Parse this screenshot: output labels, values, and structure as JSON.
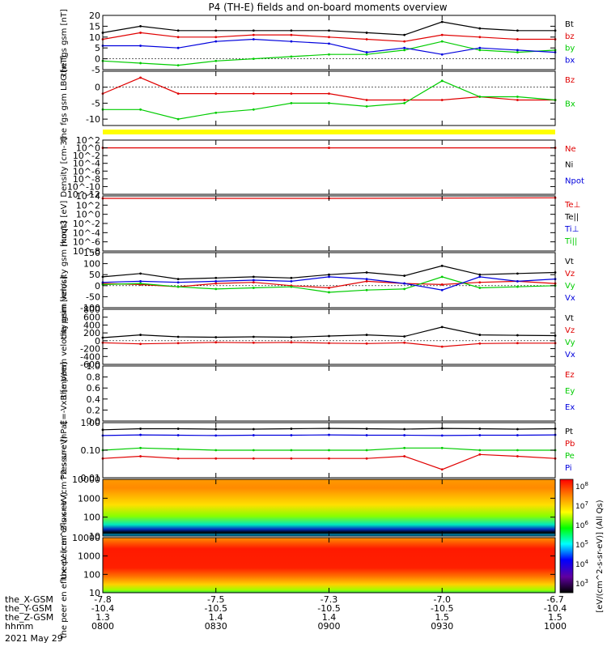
{
  "title": "P4 (TH-E) fields and on-board moments overview",
  "date_label": "2021 May 29",
  "time_axis": {
    "range_hhmm": [
      "0800",
      "1000"
    ],
    "tick_times": [
      "0800",
      "0830",
      "0900",
      "0930",
      "1000"
    ],
    "rows": [
      {
        "label": "the_X-GSM",
        "values": [
          "-7.8",
          "-7.5",
          "-7.3",
          "-7.0",
          "-6.7"
        ]
      },
      {
        "label": "the_Y-GSM",
        "values": [
          "-10.4",
          "-10.5",
          "-10.5",
          "-10.5",
          "-10.4"
        ]
      },
      {
        "label": "the_Z-GSM",
        "values": [
          "1.3",
          "1.4",
          "1.4",
          "1.5",
          "1.5"
        ]
      },
      {
        "label": "hhmm",
        "values": [
          "0800",
          "0830",
          "0900",
          "0930",
          "1000"
        ]
      }
    ]
  },
  "colorbar": {
    "label": "[eV/(cm^2-s-sr-eV)] (All Qs)",
    "ticks": [
      "10^8",
      "10^7",
      "10^6",
      "10^5",
      "10^4",
      "10^3"
    ],
    "colors": [
      "#ff0000",
      "#ff8000",
      "#ffff00",
      "#00ff00",
      "#00ffff",
      "#0000ff",
      "#6000a0",
      "#000000"
    ]
  },
  "chart_data": [
    {
      "type": "line",
      "ylabel": "the fgs gsm [nT]",
      "ylim": [
        -5,
        20
      ],
      "yticks": [
        "20",
        "15",
        "10",
        "5",
        "0",
        "-5"
      ],
      "legend": [
        "Bt",
        "bz",
        "by",
        "bx"
      ],
      "colors": [
        "#000000",
        "#e00000",
        "#00cc00",
        "#0000dd"
      ],
      "series": [
        {
          "name": "Bt",
          "x": [
            "0800",
            "0810",
            "0820",
            "0830",
            "0840",
            "0850",
            "0900",
            "0910",
            "0920",
            "0930",
            "0940",
            "0950",
            "1000"
          ],
          "values": [
            12,
            15,
            13,
            13,
            13,
            13,
            13,
            12,
            11,
            17,
            14,
            13,
            13
          ]
        },
        {
          "name": "bz",
          "x": [
            "0800",
            "0810",
            "0820",
            "0830",
            "0840",
            "0850",
            "0900",
            "0910",
            "0920",
            "0930",
            "0940",
            "0950",
            "1000"
          ],
          "values": [
            9,
            12,
            10,
            10,
            11,
            11,
            10,
            9,
            8,
            11,
            10,
            9,
            9
          ]
        },
        {
          "name": "by",
          "x": [
            "0800",
            "0810",
            "0820",
            "0830",
            "0840",
            "0850",
            "0900",
            "0910",
            "0920",
            "0930",
            "0940",
            "0950",
            "1000"
          ],
          "values": [
            -1,
            -2,
            -3,
            -1,
            0,
            1,
            2,
            2,
            4,
            8,
            4,
            3,
            4
          ]
        },
        {
          "name": "bx",
          "x": [
            "0800",
            "0810",
            "0820",
            "0830",
            "0840",
            "0850",
            "0900",
            "0910",
            "0920",
            "0930",
            "0940",
            "0950",
            "1000"
          ],
          "values": [
            6,
            6,
            5,
            8,
            9,
            8,
            7,
            3,
            5,
            2,
            5,
            4,
            3
          ]
        }
      ]
    },
    {
      "type": "line",
      "ylabel": "the fgs gsm LBG [nT]",
      "ylim": [
        -12,
        5
      ],
      "yticks": [
        "0",
        "-5",
        "-10"
      ],
      "legend": [
        "Bz",
        "Bx"
      ],
      "colors": [
        "#e00000",
        "#00cc00"
      ],
      "series": [
        {
          "name": "Bz",
          "x": [
            "0800",
            "0810",
            "0820",
            "0830",
            "0840",
            "0850",
            "0900",
            "0910",
            "0920",
            "0930",
            "0940",
            "0950",
            "1000"
          ],
          "values": [
            -2,
            3,
            -2,
            -2,
            -2,
            -2,
            -2,
            -4,
            -4,
            -4,
            -3,
            -4,
            -4
          ]
        },
        {
          "name": "Bx",
          "x": [
            "0800",
            "0810",
            "0820",
            "0830",
            "0840",
            "0850",
            "0900",
            "0910",
            "0920",
            "0930",
            "0940",
            "0950",
            "1000"
          ],
          "values": [
            -7,
            -7,
            -10,
            -8,
            -7,
            -5,
            -5,
            -6,
            -5,
            2,
            -3,
            -3,
            -4
          ]
        }
      ]
    },
    {
      "type": "line",
      "ylabel": "Density [cm-3]",
      "ylog": true,
      "yticks": [
        "10^2",
        "10^0",
        "10^-2",
        "10^-4",
        "10^-6",
        "10^-8",
        "10^-10",
        "10^-12"
      ],
      "legend": [
        "Ne",
        "Ni",
        "Npot"
      ],
      "colors": [
        "#e00000",
        "#000000",
        "#0000dd"
      ],
      "series": [
        {
          "name": "Ne",
          "x": [
            "0800",
            "0900",
            "1000"
          ],
          "values": [
            1,
            1,
            1
          ]
        }
      ]
    },
    {
      "type": "line",
      "ylabel": "moqt3 [eV]",
      "ylog": true,
      "yticks": [
        "10^4",
        "10^2",
        "10^0",
        "10^-2",
        "10^-4",
        "10^-6",
        "10^-8"
      ],
      "legend": [
        "Te⊥",
        "Te||",
        "Ti⊥",
        "Ti||"
      ],
      "colors": [
        "#e00000",
        "#000000",
        "#0000dd",
        "#00cc00"
      ],
      "series": [
        {
          "name": "Te⊥",
          "x": [
            "0800",
            "0900",
            "1000"
          ],
          "values": [
            3000,
            3000,
            4000
          ]
        }
      ]
    },
    {
      "type": "line",
      "ylabel": "the peim velocity gsm [km/s]",
      "ylim": [
        -100,
        150
      ],
      "yticks": [
        "150",
        "100",
        "50",
        "0",
        "-50",
        "-100"
      ],
      "legend": [
        "Vt",
        "Vz",
        "Vy",
        "Vx"
      ],
      "colors": [
        "#000000",
        "#e00000",
        "#00cc00",
        "#0000dd"
      ],
      "series": [
        {
          "name": "Vt",
          "x": [
            "0800",
            "0810",
            "0820",
            "0830",
            "0840",
            "0850",
            "0900",
            "0910",
            "0920",
            "0930",
            "0940",
            "0950",
            "1000"
          ],
          "values": [
            40,
            55,
            30,
            35,
            40,
            35,
            50,
            60,
            45,
            90,
            50,
            55,
            60
          ]
        },
        {
          "name": "Vz",
          "x": [
            "0800",
            "0810",
            "0820",
            "0830",
            "0840",
            "0850",
            "0900",
            "0910",
            "0920",
            "0930",
            "0940",
            "0950",
            "1000"
          ],
          "values": [
            10,
            5,
            -5,
            10,
            15,
            0,
            -10,
            20,
            10,
            5,
            15,
            20,
            10
          ]
        },
        {
          "name": "Vy",
          "x": [
            "0800",
            "0810",
            "0820",
            "0830",
            "0840",
            "0850",
            "0900",
            "0910",
            "0920",
            "0930",
            "0940",
            "0950",
            "1000"
          ],
          "values": [
            5,
            10,
            -5,
            -15,
            -10,
            -5,
            -30,
            -20,
            -15,
            40,
            -10,
            -5,
            0
          ]
        },
        {
          "name": "Vx",
          "x": [
            "0800",
            "0810",
            "0820",
            "0830",
            "0840",
            "0850",
            "0900",
            "0910",
            "0920",
            "0930",
            "0940",
            "0950",
            "1000"
          ],
          "values": [
            15,
            20,
            15,
            20,
            25,
            20,
            40,
            30,
            10,
            -20,
            40,
            20,
            30
          ]
        }
      ]
    },
    {
      "type": "line",
      "ylabel": "the peem velocity gsm [km/s]",
      "ylim": [
        -600,
        800
      ],
      "yticks": [
        "800",
        "600",
        "400",
        "200",
        "0",
        "-200",
        "-400",
        "-600"
      ],
      "legend": [
        "Vt",
        "Vz",
        "Vy",
        "Vx"
      ],
      "colors": [
        "#000000",
        "#e00000",
        "#00cc00",
        "#0000dd"
      ],
      "series": [
        {
          "name": "Vt",
          "x": [
            "0800",
            "0810",
            "0820",
            "0830",
            "0840",
            "0850",
            "0900",
            "0910",
            "0920",
            "0930",
            "0940",
            "0950",
            "1000"
          ],
          "values": [
            80,
            150,
            100,
            90,
            100,
            90,
            120,
            150,
            110,
            350,
            150,
            140,
            130
          ]
        },
        {
          "name": "Vz",
          "x": [
            "0800",
            "0810",
            "0820",
            "0830",
            "0840",
            "0850",
            "0900",
            "0910",
            "0920",
            "0930",
            "0940",
            "0950",
            "1000"
          ],
          "values": [
            -50,
            -80,
            -60,
            -40,
            -50,
            -40,
            -60,
            -70,
            -50,
            -150,
            -70,
            -60,
            -60
          ]
        }
      ]
    },
    {
      "type": "line",
      "ylabel": "E=-VxB [mV/m]",
      "ylim": [
        0,
        1
      ],
      "yticks": [
        "1.0",
        "0.8",
        "0.6",
        "0.4",
        "0.2",
        "0.0"
      ],
      "legend": [
        "Ez",
        "Ey",
        "Ex"
      ],
      "colors": [
        "#e00000",
        "#00cc00",
        "#0000dd"
      ],
      "series": []
    },
    {
      "type": "line",
      "ylabel": "Pressure [nPa]",
      "ylog": true,
      "yticks": [
        "1.00",
        "0.10",
        "0.01"
      ],
      "legend": [
        "Pt",
        "Pb",
        "Pe",
        "Pi"
      ],
      "colors": [
        "#000000",
        "#e00000",
        "#00cc00",
        "#0000dd"
      ],
      "series": [
        {
          "name": "Pt",
          "x": [
            "0800",
            "0810",
            "0820",
            "0830",
            "0840",
            "0850",
            "0900",
            "0910",
            "0920",
            "0930",
            "0940",
            "0950",
            "1000"
          ],
          "values": [
            0.55,
            0.6,
            0.6,
            0.58,
            0.58,
            0.6,
            0.62,
            0.6,
            0.58,
            0.62,
            0.6,
            0.58,
            0.6
          ]
        },
        {
          "name": "Pi",
          "x": [
            "0800",
            "0810",
            "0820",
            "0830",
            "0840",
            "0850",
            "0900",
            "0910",
            "0920",
            "0930",
            "0940",
            "0950",
            "1000"
          ],
          "values": [
            0.34,
            0.36,
            0.35,
            0.34,
            0.35,
            0.35,
            0.36,
            0.35,
            0.35,
            0.34,
            0.35,
            0.35,
            0.36
          ]
        },
        {
          "name": "Pe",
          "x": [
            "0800",
            "0810",
            "0820",
            "0830",
            "0840",
            "0850",
            "0900",
            "0910",
            "0920",
            "0930",
            "0940",
            "0950",
            "1000"
          ],
          "values": [
            0.1,
            0.12,
            0.11,
            0.1,
            0.1,
            0.1,
            0.1,
            0.1,
            0.12,
            0.12,
            0.1,
            0.1,
            0.1
          ]
        },
        {
          "name": "Pb",
          "x": [
            "0800",
            "0810",
            "0820",
            "0830",
            "0840",
            "0850",
            "0900",
            "0910",
            "0920",
            "0930",
            "0940",
            "0950",
            "1000"
          ],
          "values": [
            0.05,
            0.06,
            0.05,
            0.05,
            0.05,
            0.05,
            0.05,
            0.05,
            0.06,
            0.02,
            0.07,
            0.06,
            0.05
          ]
        }
      ]
    },
    {
      "type": "heatmap",
      "ylabel": "the peir en eflux eV (cm^2-s-sr-eV)",
      "ylog": true,
      "yticks": [
        "10000",
        "1000",
        "100",
        "10"
      ]
    },
    {
      "type": "heatmap",
      "ylabel": "the peer en eflux eV (cm^2-s-sr-eV)",
      "ylog": true,
      "yticks": [
        "10000",
        "1000",
        "100",
        "10"
      ]
    }
  ]
}
